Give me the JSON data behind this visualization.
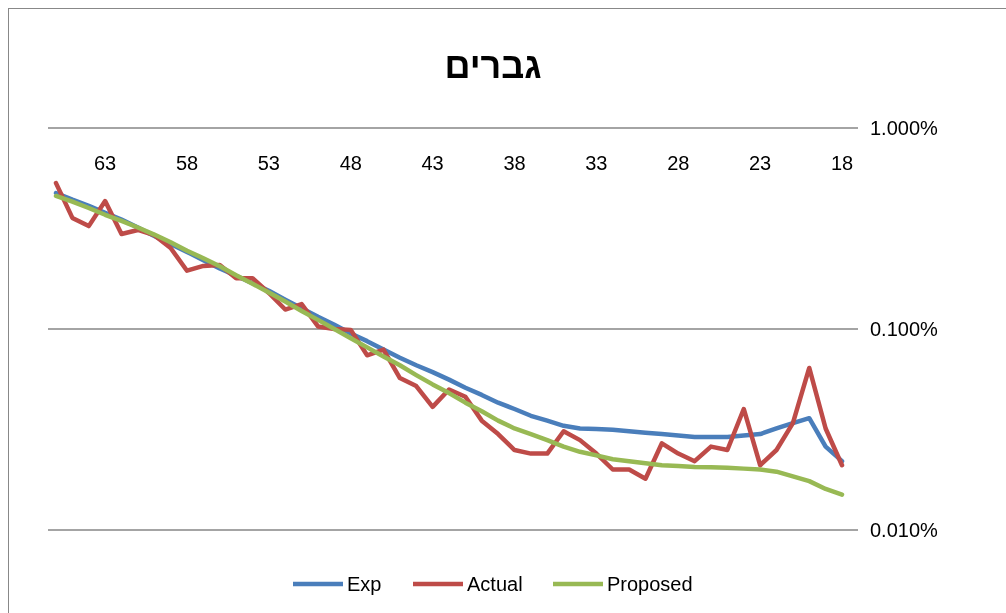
{
  "chart_data": {
    "type": "line",
    "title": "גברים",
    "categories": [
      null,
      null,
      null,
      "63",
      null,
      null,
      null,
      null,
      "58",
      null,
      null,
      null,
      null,
      "53",
      null,
      null,
      null,
      null,
      "48",
      null,
      null,
      null,
      null,
      "43",
      null,
      null,
      null,
      null,
      "38",
      null,
      null,
      null,
      null,
      "33",
      null,
      null,
      null,
      null,
      "28",
      null,
      null,
      null,
      null,
      "23",
      null,
      null,
      null,
      null,
      "18"
    ],
    "series": [
      {
        "name": "Exp",
        "color": "#4a7ebb",
        "values": [
          0.475,
          0.44,
          0.41,
          0.378,
          0.35,
          0.32,
          0.29,
          0.265,
          0.242,
          0.22,
          0.2,
          0.184,
          0.169,
          0.155,
          0.14,
          0.127,
          0.115,
          0.105,
          0.095,
          0.087,
          0.079,
          0.072,
          0.066,
          0.061,
          0.056,
          0.051,
          0.047,
          0.043,
          0.04,
          0.037,
          0.035,
          0.033,
          0.032,
          0.0318,
          0.0315,
          0.031,
          0.0305,
          0.03,
          0.0295,
          0.029,
          0.029,
          0.029,
          0.0295,
          0.03,
          0.032,
          0.034,
          0.036,
          0.026,
          0.022
        ]
      },
      {
        "name": "Actual",
        "color": "#be4b48",
        "values": [
          0.532,
          0.357,
          0.325,
          0.433,
          0.297,
          0.311,
          0.293,
          0.253,
          0.195,
          0.206,
          0.208,
          0.179,
          0.179,
          0.151,
          0.125,
          0.133,
          0.103,
          0.1,
          0.099,
          0.074,
          0.079,
          0.057,
          0.052,
          0.041,
          0.05,
          0.046,
          0.035,
          0.03,
          0.025,
          0.024,
          0.024,
          0.031,
          0.028,
          0.024,
          0.02,
          0.02,
          0.018,
          0.027,
          0.024,
          0.022,
          0.026,
          0.025,
          0.04,
          0.021,
          0.025,
          0.034,
          0.064,
          0.032,
          0.021
        ]
      },
      {
        "name": "Proposed",
        "color": "#98b954",
        "values": [
          0.459,
          0.43,
          0.4,
          0.37,
          0.345,
          0.32,
          0.295,
          0.27,
          0.245,
          0.225,
          0.205,
          0.185,
          0.168,
          0.152,
          0.137,
          0.123,
          0.111,
          0.1,
          0.09,
          0.081,
          0.073,
          0.066,
          0.059,
          0.053,
          0.048,
          0.043,
          0.039,
          0.035,
          0.032,
          0.03,
          0.028,
          0.026,
          0.0245,
          0.0235,
          0.0225,
          0.022,
          0.0215,
          0.021,
          0.0208,
          0.0206,
          0.0205,
          0.0204,
          0.0202,
          0.02,
          0.0195,
          0.0185,
          0.0175,
          0.016,
          0.015
        ]
      }
    ],
    "log": "y",
    "ylim": [
      0.01,
      1
    ],
    "yticks": [
      {
        "value": 0.01,
        "label": "0.010%"
      },
      {
        "value": 0.1,
        "label": "0.100%"
      },
      {
        "value": 1,
        "label": "1.000%"
      }
    ],
    "grid": "y",
    "legend": "bottom",
    "marker": "none",
    "line_style": "solid"
  }
}
